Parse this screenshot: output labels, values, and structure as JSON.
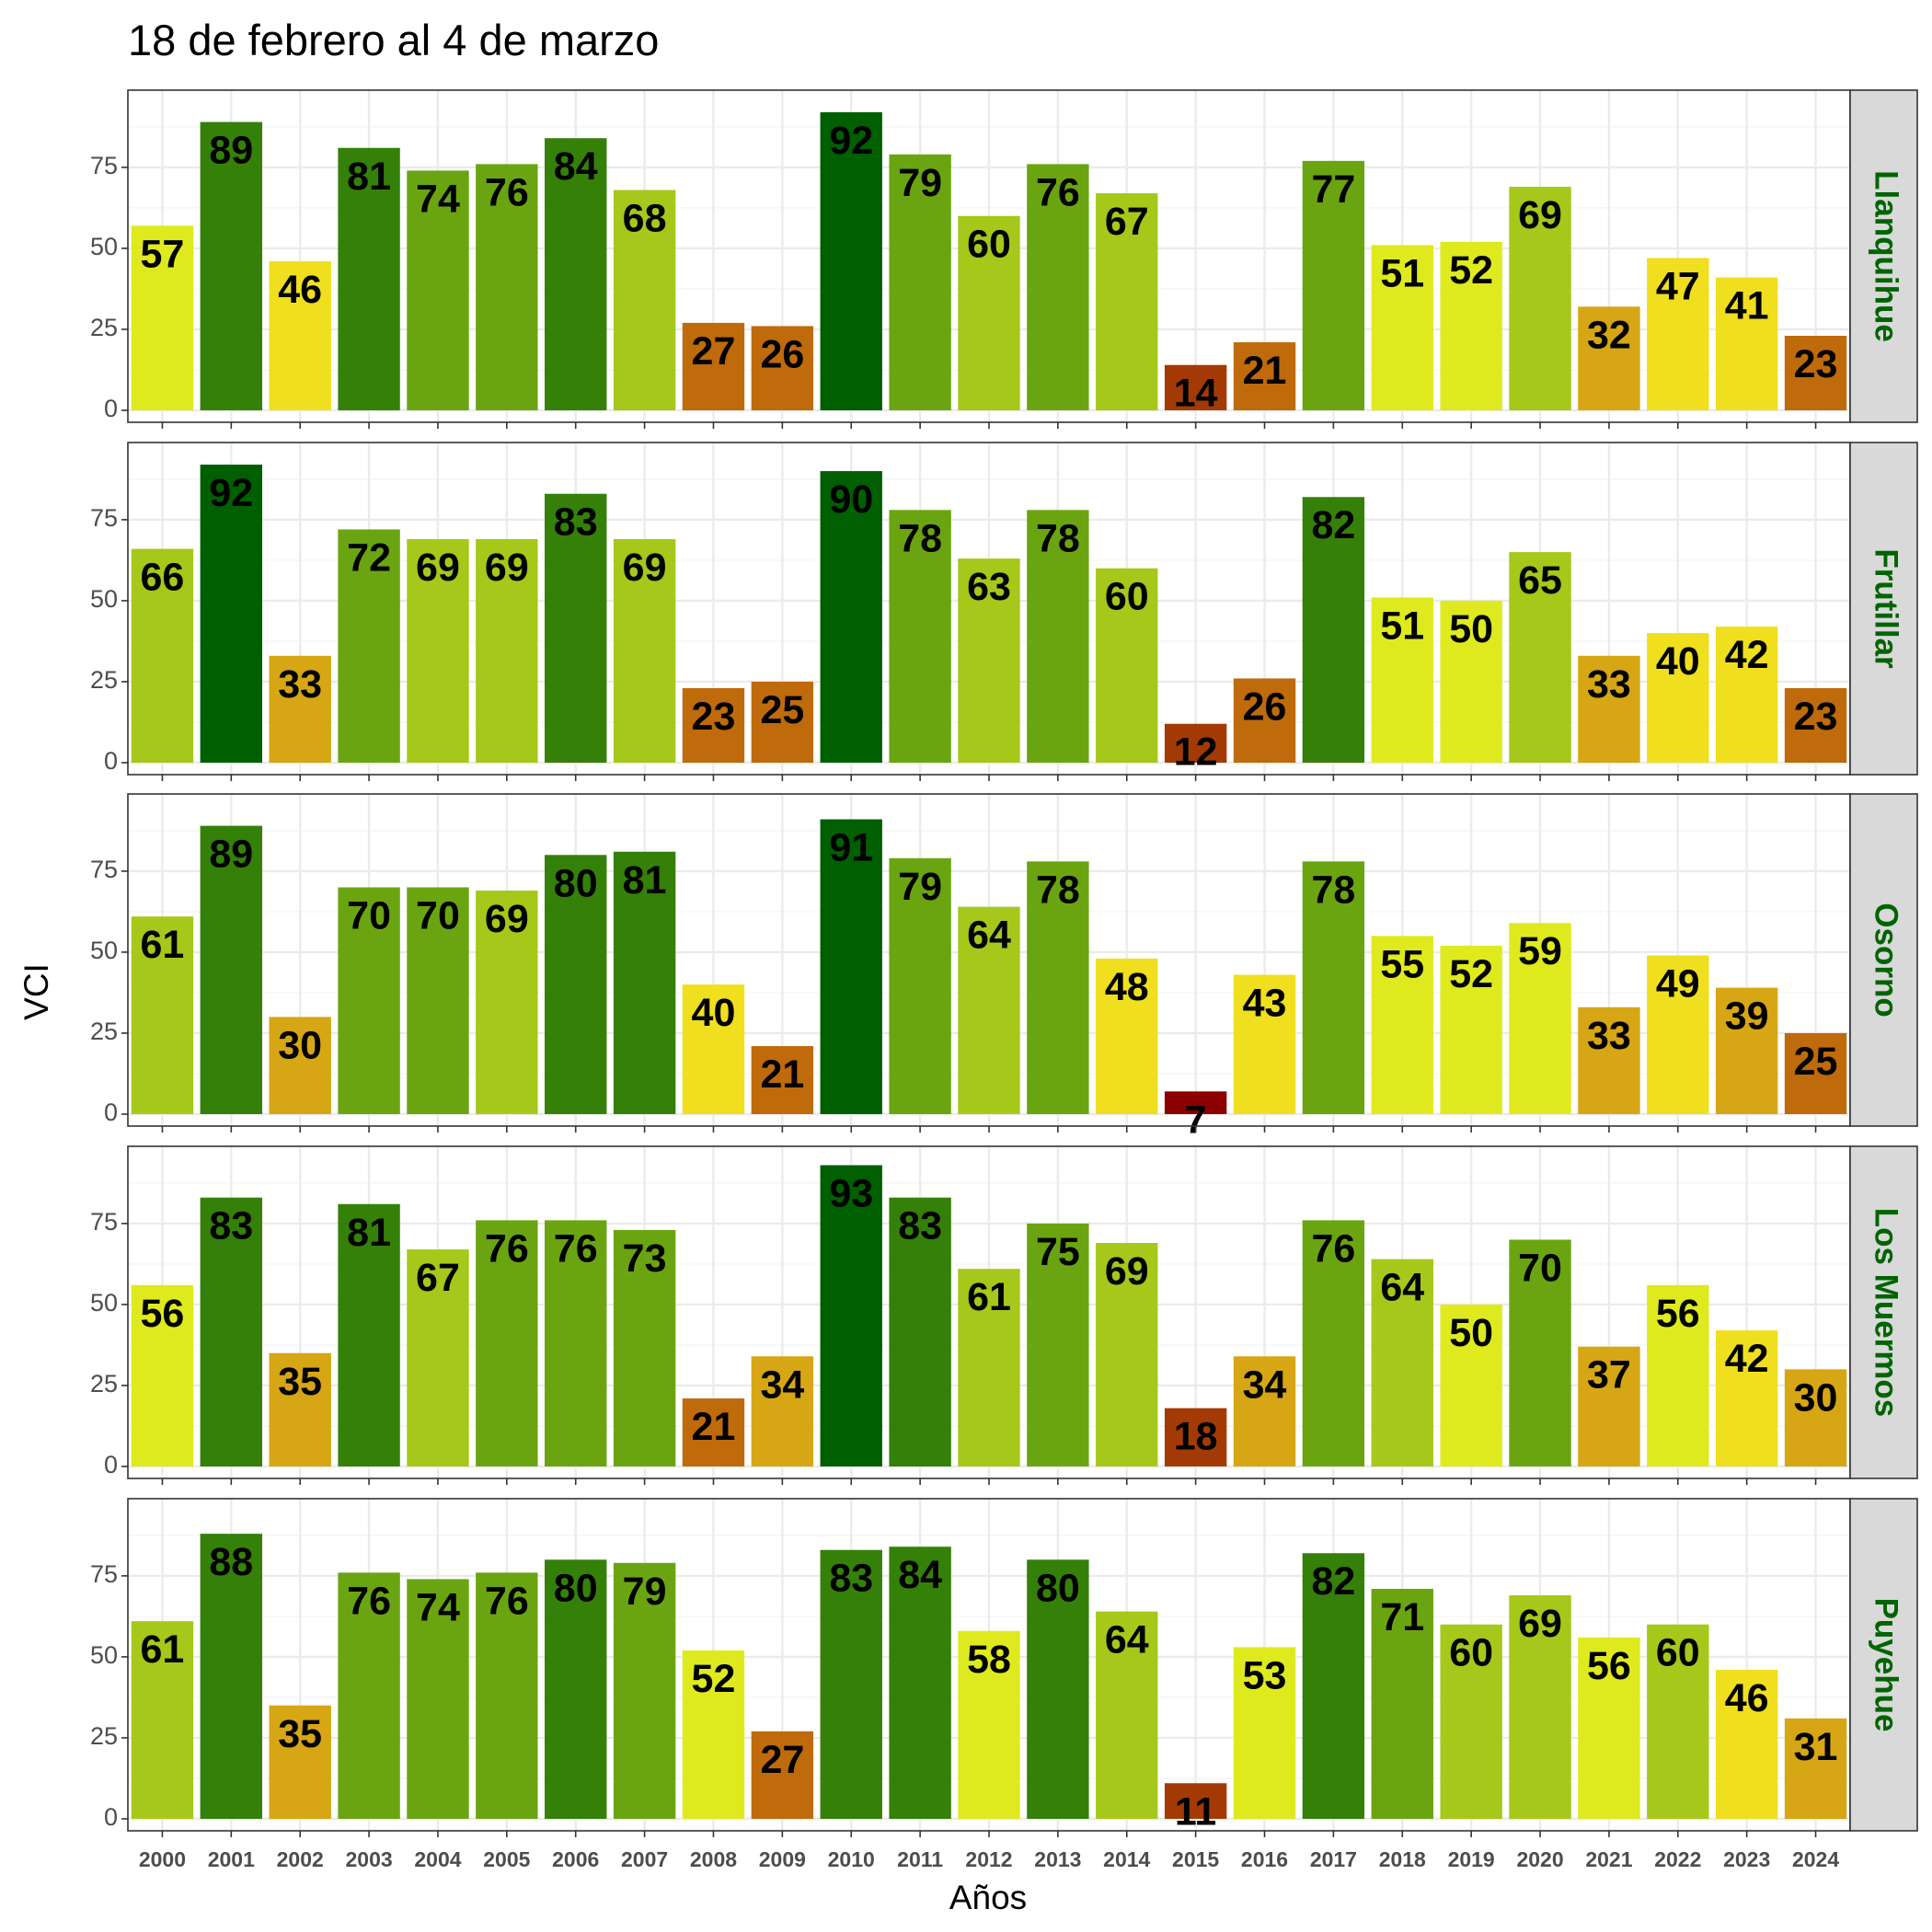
{
  "chart_data": {
    "type": "bar",
    "title": "18 de febrero al 4 de marzo",
    "xlabel": "Años",
    "ylabel": "VCI",
    "ylim": [
      0,
      95
    ],
    "y_ticks": [
      0,
      25,
      50,
      75
    ],
    "grid": true,
    "categories": [
      "2000",
      "2001",
      "2002",
      "2003",
      "2004",
      "2005",
      "2006",
      "2007",
      "2008",
      "2009",
      "2010",
      "2011",
      "2012",
      "2013",
      "2014",
      "2015",
      "2016",
      "2017",
      "2018",
      "2019",
      "2020",
      "2021",
      "2022",
      "2023",
      "2024"
    ],
    "color_scale": [
      {
        "min": 0,
        "color": "#8b0000"
      },
      {
        "min": 10,
        "color": "#a33a05"
      },
      {
        "min": 20,
        "color": "#bf6a0b"
      },
      {
        "min": 30,
        "color": "#d6a614"
      },
      {
        "min": 40,
        "color": "#efdf1e"
      },
      {
        "min": 50,
        "color": "#dfea1e"
      },
      {
        "min": 60,
        "color": "#a5c81a"
      },
      {
        "min": 70,
        "color": "#6aa511"
      },
      {
        "min": 80,
        "color": "#348009"
      },
      {
        "min": 90,
        "color": "#005f00"
      }
    ],
    "series": [
      {
        "name": "Llanquihue",
        "values": [
          57,
          89,
          46,
          81,
          74,
          76,
          84,
          68,
          27,
          26,
          92,
          79,
          60,
          76,
          67,
          14,
          21,
          77,
          51,
          52,
          69,
          32,
          47,
          41,
          23
        ]
      },
      {
        "name": "Frutillar",
        "values": [
          66,
          92,
          33,
          72,
          69,
          69,
          83,
          69,
          23,
          25,
          90,
          78,
          63,
          78,
          60,
          12,
          26,
          82,
          51,
          50,
          65,
          33,
          40,
          42,
          23
        ]
      },
      {
        "name": "Osorno",
        "values": [
          61,
          89,
          30,
          70,
          70,
          69,
          80,
          81,
          40,
          21,
          91,
          79,
          64,
          78,
          48,
          7,
          43,
          78,
          55,
          52,
          59,
          33,
          49,
          39,
          25
        ]
      },
      {
        "name": "Los Muermos",
        "values": [
          56,
          83,
          35,
          81,
          67,
          76,
          76,
          73,
          21,
          34,
          93,
          83,
          61,
          75,
          69,
          18,
          34,
          76,
          64,
          50,
          70,
          37,
          56,
          42,
          30
        ]
      },
      {
        "name": "Puyehue",
        "values": [
          61,
          88,
          35,
          76,
          74,
          76,
          80,
          79,
          52,
          27,
          83,
          84,
          58,
          80,
          64,
          11,
          53,
          82,
          71,
          60,
          69,
          56,
          60,
          46,
          31
        ]
      }
    ],
    "strip_text_color": "#006400"
  }
}
